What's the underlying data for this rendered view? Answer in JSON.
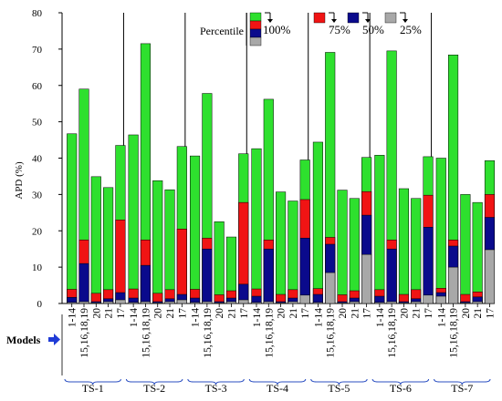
{
  "chart_data": {
    "type": "bar",
    "stacked": true,
    "ylabel": "APD (%)",
    "ylim": [
      0,
      80
    ],
    "yticks": [
      0,
      10,
      20,
      30,
      40,
      50,
      60,
      70,
      80
    ],
    "grid": false,
    "legend": {
      "placement": "top-center",
      "title": "Percentile",
      "labels": [
        "100%",
        "75%",
        "50%",
        "25%"
      ]
    },
    "xlabel": "Models",
    "category_labels": [
      "1-14",
      "15,16,18,19",
      "20",
      "21",
      "17"
    ],
    "groups": [
      {
        "name": "TS-1",
        "p25": [
          0.3,
          0.5,
          0.2,
          0.5,
          1.0
        ],
        "p50": [
          1.7,
          11.0,
          0.5,
          1.3,
          3.0
        ],
        "p75": [
          3.9,
          17.5,
          2.8,
          3.8,
          23.0
        ],
        "p100": [
          46.7,
          59.0,
          34.9,
          31.9,
          43.5
        ]
      },
      {
        "name": "TS-2",
        "p25": [
          0.3,
          0.5,
          0.2,
          0.5,
          1.0
        ],
        "p50": [
          1.5,
          10.5,
          0.5,
          1.3,
          2.5
        ],
        "p75": [
          4.0,
          17.5,
          2.8,
          3.8,
          20.5
        ],
        "p100": [
          46.4,
          71.5,
          33.8,
          31.3,
          43.2
        ]
      },
      {
        "name": "TS-3",
        "p25": [
          0.3,
          0.5,
          0.2,
          0.5,
          1.0
        ],
        "p50": [
          1.5,
          15.0,
          0.5,
          1.5,
          5.3
        ],
        "p75": [
          3.9,
          18.0,
          2.4,
          3.5,
          27.8
        ],
        "p100": [
          40.6,
          57.8,
          22.5,
          18.3,
          41.2
        ]
      },
      {
        "name": "TS-4",
        "p25": [
          0.3,
          0.5,
          0.2,
          0.5,
          2.3
        ],
        "p50": [
          2.0,
          15.0,
          0.5,
          1.5,
          18.0
        ],
        "p75": [
          4.0,
          17.5,
          2.5,
          3.8,
          28.6
        ],
        "p100": [
          42.6,
          56.2,
          30.7,
          28.2,
          39.5
        ]
      },
      {
        "name": "TS-5",
        "p25": [
          0.3,
          8.5,
          0.2,
          0.5,
          13.5
        ],
        "p50": [
          2.5,
          16.3,
          0.5,
          1.5,
          24.3
        ],
        "p75": [
          4.1,
          18.2,
          2.4,
          3.5,
          30.8
        ],
        "p100": [
          44.4,
          69.1,
          31.2,
          28.9,
          40.2
        ]
      },
      {
        "name": "TS-6",
        "p25": [
          0.3,
          0.5,
          0.2,
          0.5,
          2.3
        ],
        "p50": [
          2.0,
          15.0,
          0.5,
          1.3,
          21.0
        ],
        "p75": [
          3.8,
          17.5,
          2.5,
          3.8,
          29.8
        ],
        "p100": [
          40.8,
          69.5,
          31.6,
          28.9,
          40.4
        ]
      },
      {
        "name": "TS-7",
        "p25": [
          2.0,
          10.0,
          0.2,
          0.5,
          14.8
        ],
        "p50": [
          3.0,
          15.8,
          0.5,
          1.8,
          23.7
        ],
        "p75": [
          4.2,
          17.5,
          2.5,
          3.2,
          30.0
        ],
        "p100": [
          40.0,
          68.4,
          30.0,
          27.8,
          39.3
        ]
      }
    ]
  },
  "colors": {
    "p100": "#2ee02e",
    "p75": "#f01414",
    "p50": "#0a0a8c",
    "p25": "#a8a8a8",
    "models_arrow": "#1f3bd6",
    "brace": "#2b4fc2",
    "axis": "#000000"
  },
  "icons": {
    "models_pointer": "right-arrow-icon",
    "legend_markers": "down-arrow-icon"
  }
}
